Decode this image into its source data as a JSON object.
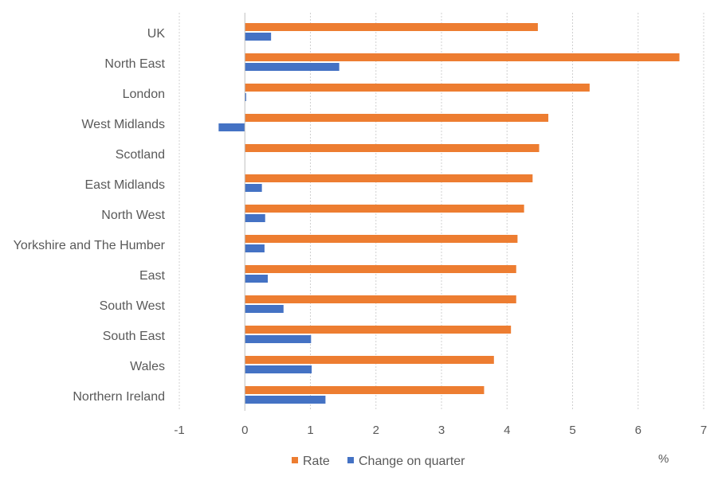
{
  "chart_data": {
    "type": "bar",
    "orientation": "horizontal",
    "categories": [
      "UK",
      "North East",
      "London",
      "West Midlands",
      "Scotland",
      "East Midlands",
      "North West",
      "Yorkshire and The Humber",
      "East ",
      "South West",
      "South East",
      "Wales",
      "Northern Ireland"
    ],
    "series": [
      {
        "name": "Rate",
        "color": "#ED7D31",
        "values": [
          4.47,
          6.63,
          5.26,
          4.63,
          4.49,
          4.39,
          4.26,
          4.16,
          4.14,
          4.14,
          4.06,
          3.8,
          3.65
        ]
      },
      {
        "name": "Change on quarter",
        "color": "#4472C4",
        "values": [
          0.4,
          1.44,
          0.02,
          -0.4,
          0.0,
          0.26,
          0.31,
          0.3,
          0.35,
          0.59,
          1.01,
          1.02,
          1.23
        ]
      }
    ],
    "xlim": [
      -1,
      7
    ],
    "xticks": [
      -1,
      0,
      1,
      2,
      3,
      4,
      5,
      6,
      7
    ],
    "xtick_labels": [
      "-1",
      "0",
      "1",
      "2",
      "3",
      "4",
      "5",
      "6",
      "7"
    ],
    "unit_label": "%",
    "title": "",
    "xlabel": "",
    "ylabel": "",
    "grid": true,
    "legend_position": "bottom"
  }
}
